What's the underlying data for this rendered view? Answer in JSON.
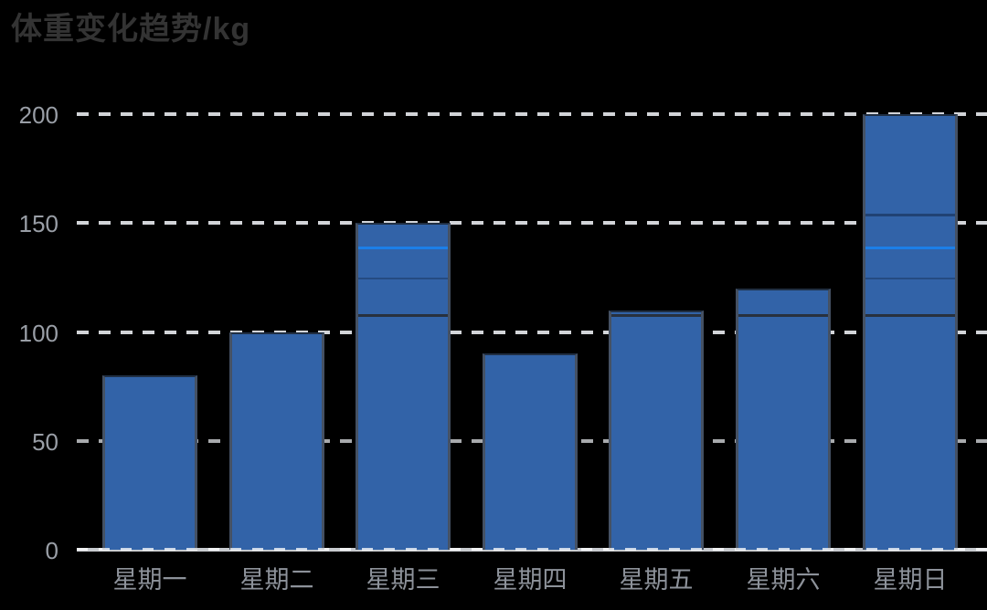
{
  "chart_data": {
    "type": "bar",
    "title": "体重变化趋势/kg",
    "categories": [
      "星期一",
      "星期二",
      "星期三",
      "星期四",
      "星期五",
      "星期六",
      "星期日"
    ],
    "values": [
      80,
      100,
      150,
      90,
      110,
      120,
      200
    ],
    "xlabel": "",
    "ylabel": "",
    "ylim": [
      0,
      200
    ],
    "yticks": [
      0,
      50,
      100,
      150,
      200
    ],
    "grid": "horizontal-dashed",
    "legend_position": "none",
    "bar_color": "#3263a8",
    "grid_color": "#d2d4d8",
    "axis_label_color": "#999ea6",
    "title_color": "#333333",
    "overlay_lines": [
      {
        "value": 153,
        "color": "rgba(18,40,72,0.55)",
        "thickness": 3
      },
      {
        "value": 138,
        "color": "#1c7fe8",
        "thickness": 3
      },
      {
        "value": 124,
        "color": "rgba(22,46,84,0.45)",
        "thickness": 2
      },
      {
        "value": 107,
        "color": "rgba(40,46,56,0.95)",
        "thickness": 3
      }
    ]
  }
}
